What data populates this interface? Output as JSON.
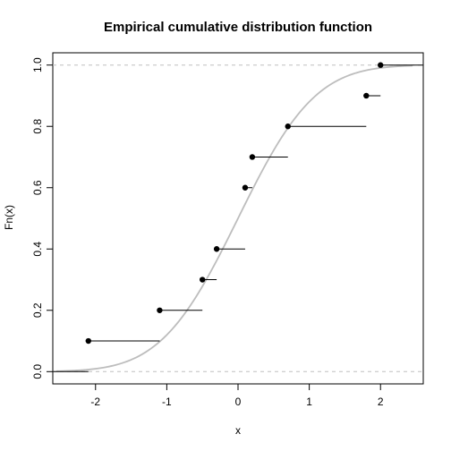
{
  "chart_data": {
    "type": "line",
    "subtype": "ecdf-step",
    "title": "Empirical cumulative distribution function",
    "xlabel": "x",
    "ylabel": "Fn(x)",
    "xlim": [
      -2.6,
      2.6
    ],
    "ylim": [
      -0.04,
      1.04
    ],
    "x_ticks": [
      -2,
      -1,
      0,
      1,
      2
    ],
    "x_tick_labels": [
      "-2",
      "-1",
      "0",
      "1",
      "2"
    ],
    "y_ticks": [
      0.0,
      0.2,
      0.4,
      0.6,
      0.8,
      1.0
    ],
    "y_tick_labels": [
      "0.0",
      "0.2",
      "0.4",
      "0.6",
      "0.8",
      "1.0"
    ],
    "reference_lines_y": [
      0,
      1
    ],
    "grid": false,
    "legend": "none",
    "steps": [
      {
        "x": -2.1,
        "x_end": -1.1,
        "y": 0.1
      },
      {
        "x": -1.1,
        "x_end": -0.5,
        "y": 0.2
      },
      {
        "x": -0.5,
        "x_end": -0.3,
        "y": 0.3
      },
      {
        "x": -0.3,
        "x_end": 0.1,
        "y": 0.4
      },
      {
        "x": 0.1,
        "x_end": 0.2,
        "y": 0.6
      },
      {
        "x": 0.2,
        "x_end": 0.7,
        "y": 0.7
      },
      {
        "x": 0.7,
        "x_end": 1.8,
        "y": 0.8
      },
      {
        "x": 1.8,
        "x_end": 2.0,
        "y": 0.9
      },
      {
        "x": 2.0,
        "x_end": 2.6,
        "y": 1.0
      }
    ],
    "initial_segment": {
      "x_start": -2.6,
      "x_end": -2.1,
      "y": 0.0
    },
    "reference_curve": {
      "kind": "normal-cdf",
      "mean": 0.0,
      "sd": 0.85,
      "x_range": [
        -2.55,
        2.45
      ]
    },
    "colors": {
      "steps": "#000000",
      "points": "#000000",
      "reference_curve": "#bdbdbd",
      "reference_lines": "#bfbfbf",
      "axes": "#000000"
    }
  }
}
